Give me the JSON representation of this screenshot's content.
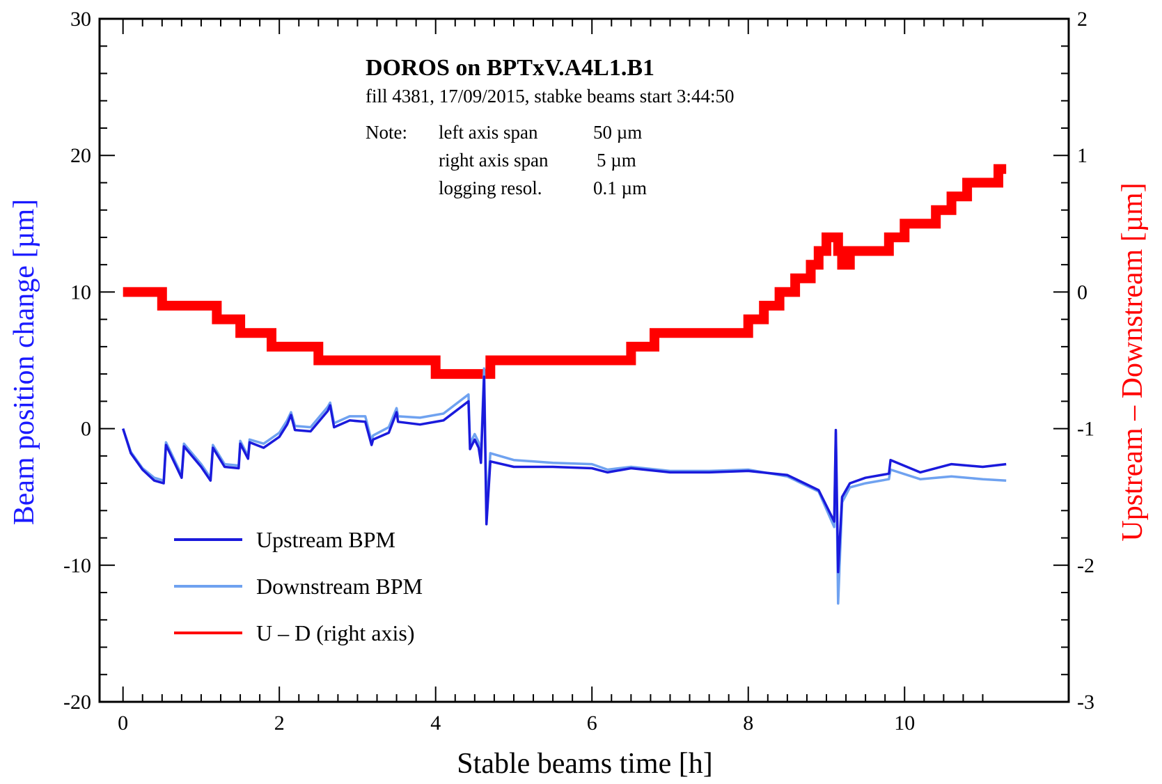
{
  "chart_data": {
    "type": "line",
    "title": "DOROS on BPTxV.A4L1.B1",
    "subtitle": "fill 4381, 17/09/2015, stabke beams start 3:44:50",
    "note": {
      "label": "Note:",
      "lines": [
        {
          "key": "left axis span",
          "value": "50 µm"
        },
        {
          "key": "right axis span",
          "value": "5 µm"
        },
        {
          "key": "logging resol.",
          "value": "0.1 µm"
        }
      ]
    },
    "xlabel": "Stable beams time   [h]",
    "ylabel_left": "Beam position change   [µm]",
    "ylabel_right": "Upstream – Downstream   [µm]",
    "xlim": [
      -0.3,
      12.1
    ],
    "ylim_left": [
      -20,
      30
    ],
    "ylim_right": [
      -3,
      2
    ],
    "x_ticks": [
      0,
      2,
      4,
      6,
      8,
      10
    ],
    "y_ticks_left": [
      -20,
      -10,
      0,
      10,
      20,
      30
    ],
    "y_ticks_right": [
      -3,
      -2,
      -1,
      0,
      1,
      2
    ],
    "grid": false,
    "legend_position": "bottom-left",
    "colors": {
      "upstream": "#1a1adc",
      "downstream": "#6fa2f0",
      "u_minus_d": "#ff0000",
      "left_axis_label": "#1a1aff",
      "right_axis_label": "#ff0000"
    },
    "series": [
      {
        "name": "Upstream BPM",
        "axis": "left",
        "x": [
          0,
          0.1,
          0.25,
          0.4,
          0.52,
          0.55,
          0.75,
          0.78,
          1.0,
          1.12,
          1.15,
          1.3,
          1.48,
          1.5,
          1.6,
          1.62,
          1.8,
          2.0,
          2.1,
          2.15,
          2.2,
          2.4,
          2.62,
          2.65,
          2.7,
          2.9,
          3.1,
          3.18,
          3.2,
          3.4,
          3.5,
          3.52,
          3.8,
          4.1,
          4.42,
          4.44,
          4.5,
          4.55,
          4.58,
          4.62,
          4.65,
          4.7,
          5.0,
          5.5,
          6.0,
          6.2,
          6.5,
          7.0,
          7.5,
          8.0,
          8.5,
          8.9,
          9.1,
          9.12,
          9.15,
          9.2,
          9.3,
          9.5,
          9.8,
          9.82,
          10.2,
          10.6,
          11.0,
          11.3
        ],
        "y": [
          0,
          -1.8,
          -3.0,
          -3.8,
          -4.0,
          -1.2,
          -3.6,
          -1.3,
          -2.8,
          -3.8,
          -1.4,
          -2.8,
          -2.9,
          -1.1,
          -2.2,
          -1.0,
          -1.4,
          -0.6,
          0.3,
          1.0,
          -0.1,
          -0.2,
          1.3,
          1.7,
          0.1,
          0.6,
          0.5,
          -1.2,
          -0.8,
          -0.3,
          1.2,
          0.5,
          0.3,
          0.6,
          2.0,
          -1.5,
          -0.8,
          -1.4,
          -2.5,
          3.8,
          -7.0,
          -2.4,
          -2.8,
          -2.8,
          -2.9,
          -3.2,
          -2.9,
          -3.2,
          -3.2,
          -3.1,
          -3.4,
          -4.5,
          -6.8,
          -0.1,
          -10.5,
          -5.0,
          -4.0,
          -3.6,
          -3.3,
          -2.3,
          -3.2,
          -2.6,
          -2.8,
          -2.6
        ]
      },
      {
        "name": "Downstream BPM",
        "axis": "left",
        "x": [
          0,
          0.1,
          0.25,
          0.4,
          0.52,
          0.55,
          0.75,
          0.78,
          1.0,
          1.12,
          1.15,
          1.3,
          1.48,
          1.5,
          1.6,
          1.62,
          1.8,
          2.0,
          2.1,
          2.15,
          2.2,
          2.4,
          2.62,
          2.65,
          2.7,
          2.9,
          3.1,
          3.18,
          3.2,
          3.4,
          3.5,
          3.52,
          3.8,
          4.1,
          4.42,
          4.44,
          4.5,
          4.55,
          4.58,
          4.62,
          4.65,
          4.7,
          5.0,
          5.5,
          6.0,
          6.2,
          6.5,
          7.0,
          7.5,
          8.0,
          8.5,
          8.9,
          9.1,
          9.12,
          9.15,
          9.2,
          9.3,
          9.5,
          9.8,
          9.82,
          10.2,
          10.6,
          11.0,
          11.3
        ],
        "y": [
          0,
          -1.7,
          -2.9,
          -3.6,
          -3.8,
          -1.0,
          -3.4,
          -1.1,
          -2.6,
          -3.6,
          -1.2,
          -2.6,
          -2.7,
          -0.9,
          -2.0,
          -0.8,
          -1.1,
          -0.3,
          0.6,
          1.2,
          0.2,
          0.1,
          1.6,
          1.9,
          0.4,
          0.9,
          0.9,
          -0.9,
          -0.5,
          0.1,
          1.5,
          0.9,
          0.8,
          1.1,
          2.5,
          -1.1,
          -0.4,
          -1.0,
          -2.0,
          4.4,
          -6.0,
          -1.8,
          -2.3,
          -2.5,
          -2.6,
          -3.0,
          -2.8,
          -3.1,
          -3.1,
          -3.0,
          -3.5,
          -4.6,
          -7.2,
          -0.3,
          -12.8,
          -5.4,
          -4.3,
          -4.0,
          -3.7,
          -3.0,
          -3.7,
          -3.5,
          -3.7,
          -3.8
        ]
      },
      {
        "name": "U – D  (right axis)",
        "axis": "right",
        "x": [
          0,
          0.5,
          0.8,
          1.2,
          1.5,
          1.9,
          2.5,
          2.8,
          3.7,
          4.0,
          4.5,
          4.7,
          5.0,
          6.0,
          6.5,
          6.8,
          7.5,
          8.0,
          8.2,
          8.4,
          8.6,
          8.8,
          8.9,
          9.0,
          9.15,
          9.2,
          9.3,
          9.6,
          9.8,
          10.0,
          10.2,
          10.4,
          10.6,
          10.8,
          11.0,
          11.2,
          11.3
        ],
        "y": [
          0.0,
          -0.1,
          -0.1,
          -0.2,
          -0.3,
          -0.4,
          -0.5,
          -0.5,
          -0.5,
          -0.6,
          -0.6,
          -0.5,
          -0.5,
          -0.5,
          -0.4,
          -0.3,
          -0.3,
          -0.2,
          -0.1,
          0.0,
          0.1,
          0.2,
          0.3,
          0.4,
          0.3,
          0.2,
          0.3,
          0.3,
          0.4,
          0.5,
          0.5,
          0.6,
          0.7,
          0.8,
          0.8,
          0.9,
          0.9
        ]
      }
    ]
  }
}
